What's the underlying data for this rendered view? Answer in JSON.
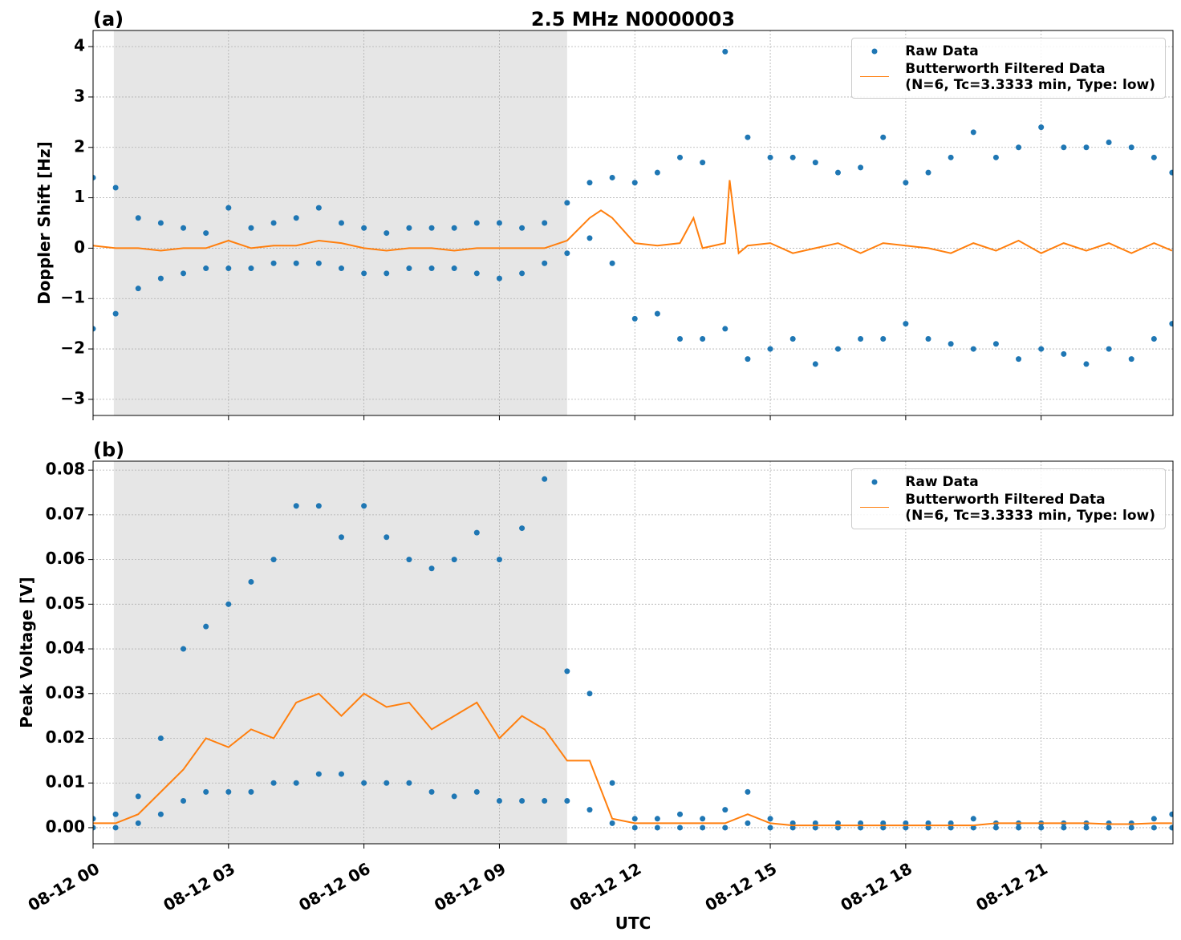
{
  "chart_data": [
    {
      "type": "line",
      "panel_label": "(a)",
      "title": "2.5 MHz N0000003",
      "ylabel": "Doppler Shift [Hz]",
      "xlim": [
        0,
        23.92
      ],
      "xticks": [
        0,
        3,
        6,
        9,
        12,
        15,
        18,
        21
      ],
      "ylim": [
        -3.32,
        4.32
      ],
      "yticks": [
        {
          "value": -3,
          "label": "−3"
        },
        {
          "value": -2,
          "label": "−2"
        },
        {
          "value": -1,
          "label": "−1"
        },
        0,
        1,
        2,
        3,
        4
      ],
      "grid": true,
      "legend": "upper right",
      "shade": [
        0.46,
        10.5
      ],
      "shade_color": "#e6e6e6",
      "series": [
        {
          "name": "Raw Data",
          "color": "#1f77b4",
          "marker": "dot",
          "x": [
            0,
            0,
            0.5,
            0.5,
            1,
            1,
            1.5,
            1.5,
            2,
            2,
            2.5,
            2.5,
            3,
            3,
            3.5,
            3.5,
            4,
            4,
            4.5,
            4.5,
            5,
            5,
            5.5,
            5.5,
            6,
            6,
            6.5,
            6.5,
            7,
            7,
            7.5,
            7.5,
            8,
            8,
            8.5,
            8.5,
            9,
            9,
            9.5,
            9.5,
            10,
            10,
            10.5,
            10.5,
            11,
            11,
            11.5,
            11.5,
            12,
            12,
            12.5,
            12.5,
            13,
            13,
            13.5,
            13.5,
            14,
            14,
            14.5,
            14.5,
            15,
            15,
            15.5,
            15.5,
            16,
            16,
            16.5,
            16.5,
            17,
            17,
            17.5,
            17.5,
            18,
            18,
            18.5,
            18.5,
            19,
            19,
            19.5,
            19.5,
            20,
            20,
            20.5,
            20.5,
            21,
            21,
            21.5,
            21.5,
            22,
            22,
            22.5,
            22.5,
            23,
            23,
            23.5,
            23.5,
            23.9,
            23.9
          ],
          "values": [
            1.4,
            -1.6,
            1.2,
            -1.3,
            0.6,
            -0.8,
            0.5,
            -0.6,
            0.4,
            -0.5,
            0.3,
            -0.4,
            0.8,
            -0.4,
            0.4,
            -0.4,
            0.5,
            -0.3,
            0.6,
            -0.3,
            0.8,
            -0.3,
            0.5,
            -0.4,
            0.4,
            -0.5,
            0.3,
            -0.5,
            0.4,
            -0.4,
            0.4,
            -0.4,
            0.4,
            -0.4,
            0.5,
            -0.5,
            0.5,
            -0.6,
            0.4,
            -0.5,
            0.5,
            -0.3,
            0.9,
            -0.1,
            1.3,
            0.2,
            1.4,
            -0.3,
            1.3,
            -1.4,
            1.5,
            -1.3,
            1.8,
            -1.8,
            1.7,
            -1.8,
            3.9,
            -1.6,
            2.2,
            -2.2,
            1.8,
            -2.0,
            1.8,
            -1.8,
            1.7,
            -2.3,
            1.5,
            -2.0,
            1.6,
            -1.8,
            2.2,
            -1.8,
            1.3,
            -1.5,
            1.5,
            -1.8,
            1.8,
            -1.9,
            2.3,
            -2.0,
            1.8,
            -1.9,
            2.0,
            -2.2,
            2.4,
            -2.0,
            2.0,
            -2.1,
            2.0,
            -2.3,
            2.1,
            -2.0,
            2.0,
            -2.2,
            1.8,
            -1.8,
            1.5,
            -1.5
          ]
        },
        {
          "name": "Butterworth Filtered Data\n(N=6, Tc=3.3333 min, Type: low)",
          "color": "#ff7f0e",
          "marker": "line",
          "x": [
            0,
            0.5,
            1,
            1.5,
            2,
            2.5,
            3,
            3.5,
            4,
            4.5,
            5,
            5.5,
            6,
            6.5,
            7,
            7.5,
            8,
            8.5,
            9,
            9.5,
            10,
            10.5,
            11,
            11.25,
            11.5,
            12,
            12.5,
            13,
            13.3,
            13.5,
            14,
            14.1,
            14.3,
            14.5,
            15,
            15.5,
            16,
            16.5,
            17,
            17.5,
            18,
            18.5,
            19,
            19.5,
            20,
            20.5,
            21,
            21.5,
            22,
            22.5,
            23,
            23.5,
            23.9
          ],
          "values": [
            0.05,
            0.0,
            0.0,
            -0.05,
            0.0,
            0.0,
            0.15,
            0.0,
            0.05,
            0.05,
            0.15,
            0.1,
            0.0,
            -0.05,
            0.0,
            0.0,
            -0.05,
            0.0,
            0.0,
            0.0,
            0.0,
            0.15,
            0.6,
            0.75,
            0.6,
            0.1,
            0.05,
            0.1,
            0.6,
            0.0,
            0.1,
            1.35,
            -0.1,
            0.05,
            0.1,
            -0.1,
            0.0,
            0.1,
            -0.1,
            0.1,
            0.05,
            0.0,
            -0.1,
            0.1,
            -0.05,
            0.15,
            -0.1,
            0.1,
            -0.05,
            0.1,
            -0.1,
            0.1,
            -0.05
          ]
        }
      ]
    },
    {
      "type": "line",
      "panel_label": "(b)",
      "ylabel": "Peak Voltage [V]",
      "xlabel": "UTC",
      "xlim": [
        0,
        23.92
      ],
      "xticks": [
        {
          "value": 0,
          "label": "08-12 00"
        },
        {
          "value": 3,
          "label": "08-12 03"
        },
        {
          "value": 6,
          "label": "08-12 06"
        },
        {
          "value": 9,
          "label": "08-12 09"
        },
        {
          "value": 12,
          "label": "08-12 12"
        },
        {
          "value": 15,
          "label": "08-12 15"
        },
        {
          "value": 18,
          "label": "08-12 18"
        },
        {
          "value": 21,
          "label": "08-12 21"
        }
      ],
      "ylim": [
        -0.0036,
        0.082
      ],
      "yticks": [
        {
          "value": 0,
          "label": "0.00"
        },
        {
          "value": 0.01,
          "label": "0.01"
        },
        {
          "value": 0.02,
          "label": "0.02"
        },
        {
          "value": 0.03,
          "label": "0.03"
        },
        {
          "value": 0.04,
          "label": "0.04"
        },
        {
          "value": 0.05,
          "label": "0.05"
        },
        {
          "value": 0.06,
          "label": "0.06"
        },
        {
          "value": 0.07,
          "label": "0.07"
        },
        {
          "value": 0.08,
          "label": "0.08"
        }
      ],
      "grid": true,
      "legend": "upper right",
      "shade": [
        0.46,
        10.5
      ],
      "shade_color": "#e6e6e6",
      "series": [
        {
          "name": "Raw Data",
          "color": "#1f77b4",
          "marker": "dot",
          "x": [
            0,
            0,
            0.5,
            0.5,
            1,
            1,
            1.5,
            1.5,
            2,
            2,
            2.5,
            2.5,
            3,
            3,
            3.5,
            3.5,
            4,
            4,
            4.5,
            4.5,
            5,
            5,
            5.5,
            5.5,
            6,
            6,
            6.5,
            6.5,
            7,
            7,
            7.5,
            7.5,
            8,
            8,
            8.5,
            8.5,
            9,
            9,
            9.5,
            9.5,
            10,
            10,
            10.5,
            10.5,
            11,
            11,
            11.5,
            11.5,
            12,
            12,
            12.5,
            12.5,
            13,
            13,
            13.5,
            13.5,
            14,
            14,
            14.5,
            14.5,
            15,
            15,
            15.5,
            15.5,
            16,
            16,
            16.5,
            16.5,
            17,
            17,
            17.5,
            17.5,
            18,
            18,
            18.5,
            18.5,
            19,
            19,
            19.5,
            19.5,
            20,
            20,
            20.5,
            20.5,
            21,
            21,
            21.5,
            21.5,
            22,
            22,
            22.5,
            22.5,
            23,
            23,
            23.5,
            23.5,
            23.9,
            23.9
          ],
          "values": [
            0.002,
            0,
            0.003,
            0,
            0.007,
            0.001,
            0.02,
            0.003,
            0.04,
            0.006,
            0.045,
            0.008,
            0.05,
            0.008,
            0.055,
            0.008,
            0.06,
            0.01,
            0.072,
            0.01,
            0.072,
            0.012,
            0.065,
            0.012,
            0.072,
            0.01,
            0.065,
            0.01,
            0.06,
            0.01,
            0.058,
            0.008,
            0.06,
            0.007,
            0.066,
            0.008,
            0.06,
            0.006,
            0.067,
            0.006,
            0.078,
            0.006,
            0.035,
            0.006,
            0.03,
            0.004,
            0.01,
            0.001,
            0.002,
            0,
            0.002,
            0,
            0.003,
            0,
            0.002,
            0,
            0.004,
            0,
            0.008,
            0.001,
            0.002,
            0,
            0.001,
            0,
            0.001,
            0,
            0.001,
            0,
            0.001,
            0,
            0.001,
            0,
            0.001,
            0,
            0.001,
            0,
            0.001,
            0,
            0.002,
            0,
            0.001,
            0,
            0.001,
            0,
            0.001,
            0,
            0.001,
            0,
            0.001,
            0,
            0.001,
            0,
            0.001,
            0,
            0.002,
            0,
            0.003,
            0
          ]
        },
        {
          "name": "Butterworth Filtered Data\n(N=6, Tc=3.3333 min, Type: low)",
          "color": "#ff7f0e",
          "marker": "line",
          "x": [
            0,
            0.5,
            1,
            1.5,
            2,
            2.5,
            3,
            3.5,
            4,
            4.5,
            5,
            5.5,
            6,
            6.5,
            7,
            7.5,
            8,
            8.5,
            9,
            9.5,
            10,
            10.5,
            11,
            11.5,
            12,
            12.5,
            13,
            13.5,
            14,
            14.5,
            15,
            15.5,
            16,
            16.5,
            17,
            17.5,
            18,
            18.5,
            19,
            19.5,
            20,
            20.5,
            21,
            21.5,
            22,
            22.5,
            23,
            23.5,
            23.9
          ],
          "values": [
            0.001,
            0.001,
            0.003,
            0.008,
            0.013,
            0.02,
            0.018,
            0.022,
            0.02,
            0.028,
            0.03,
            0.025,
            0.03,
            0.027,
            0.028,
            0.022,
            0.025,
            0.028,
            0.02,
            0.025,
            0.022,
            0.015,
            0.015,
            0.002,
            0.001,
            0.001,
            0.001,
            0.001,
            0.001,
            0.003,
            0.001,
            0.0005,
            0.0005,
            0.0005,
            0.0005,
            0.0005,
            0.0005,
            0.0005,
            0.0005,
            0.0005,
            0.001,
            0.001,
            0.001,
            0.001,
            0.001,
            0.0008,
            0.0008,
            0.001,
            0.001
          ]
        }
      ]
    }
  ]
}
